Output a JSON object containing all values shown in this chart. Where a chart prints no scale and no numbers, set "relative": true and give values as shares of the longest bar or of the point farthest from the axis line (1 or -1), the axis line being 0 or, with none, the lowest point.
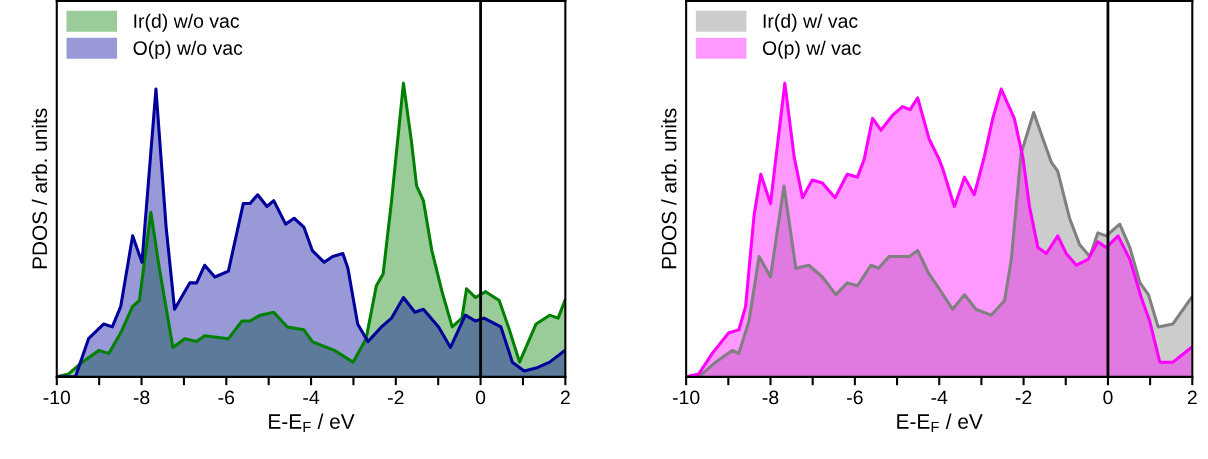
{
  "chart_data": [
    {
      "type": "area",
      "relative": true,
      "xlabel": "E-E$_{F}$ / eV",
      "ylabel": "PDOS / arb. units",
      "xlim": [
        -10,
        2
      ],
      "xticks": [
        -10,
        {
          "value": -9,
          "label": null
        },
        -8,
        {
          "value": -7,
          "label": null
        },
        -6,
        {
          "value": -5,
          "label": null
        },
        -4,
        {
          "value": -3,
          "label": null
        },
        -2,
        {
          "value": -1,
          "label": null
        },
        0,
        {
          "value": 1,
          "label": null
        },
        2
      ],
      "legend": "top left",
      "grid": false,
      "ref_lines": [
        {
          "axis": "x",
          "value": 0,
          "color": "#000000",
          "line_style": "solid"
        }
      ],
      "series": [
        {
          "name": "Ir(d) w/o vac",
          "color": "#008000",
          "x": [
            -10,
            -9.72,
            -9.4,
            -9.01,
            -8.77,
            -8.49,
            -8.21,
            -8.05,
            -7.78,
            -7.58,
            -7.26,
            -6.98,
            -6.7,
            -6.51,
            -5.95,
            -5.63,
            -5.44,
            -5.2,
            -4.88,
            -4.56,
            -4.17,
            -3.97,
            -3.45,
            -3.01,
            -2.7,
            -2.46,
            -2.3,
            -2.1,
            -1.82,
            -1.63,
            -1.51,
            -1.35,
            -1.15,
            -0.91,
            -0.67,
            -0.44,
            -0.33,
            -0.12,
            0.12,
            0.44,
            0.68,
            0.92,
            1.31,
            1.63,
            1.83,
            1.99
          ],
          "values": [
            0,
            0.01,
            0.05,
            0.09,
            0.08,
            0.15,
            0.24,
            0.26,
            0.56,
            0.37,
            0.1,
            0.13,
            0.12,
            0.14,
            0.13,
            0.19,
            0.19,
            0.21,
            0.22,
            0.17,
            0.16,
            0.12,
            0.09,
            0.05,
            0.13,
            0.31,
            0.35,
            0.6,
            1.0,
            0.8,
            0.65,
            0.6,
            0.43,
            0.29,
            0.17,
            0.2,
            0.3,
            0.27,
            0.29,
            0.26,
            0.16,
            0.05,
            0.18,
            0.21,
            0.2,
            0.26
          ]
        },
        {
          "name": "O(p) w/o vac",
          "color": "#00009b",
          "x": [
            -10,
            -9.56,
            -9.25,
            -8.89,
            -8.69,
            -8.49,
            -8.21,
            -7.99,
            -7.66,
            -7.42,
            -7.22,
            -6.86,
            -6.7,
            -6.51,
            -6.27,
            -5.95,
            -5.6,
            -5.44,
            -5.26,
            -5.04,
            -4.88,
            -4.6,
            -4.4,
            -4.17,
            -3.97,
            -3.69,
            -3.49,
            -3.25,
            -3.13,
            -2.9,
            -2.66,
            -2.34,
            -2.1,
            -1.82,
            -1.55,
            -1.35,
            -0.99,
            -0.71,
            -0.36,
            -0.12,
            0.08,
            0.48,
            0.75,
            1.03,
            1.31,
            1.63,
            1.99
          ],
          "values": [
            0,
            0,
            0.13,
            0.18,
            0.17,
            0.24,
            0.48,
            0.39,
            0.98,
            0.51,
            0.23,
            0.32,
            0.32,
            0.38,
            0.34,
            0.36,
            0.59,
            0.59,
            0.62,
            0.58,
            0.6,
            0.52,
            0.54,
            0.51,
            0.43,
            0.39,
            0.41,
            0.42,
            0.37,
            0.18,
            0.12,
            0.17,
            0.2,
            0.27,
            0.22,
            0.23,
            0.17,
            0.1,
            0.21,
            0.19,
            0.2,
            0.17,
            0.05,
            0.02,
            0.03,
            0.05,
            0.09
          ]
        }
      ]
    },
    {
      "type": "area",
      "relative": true,
      "xlabel": "E-E$_{F}$ / eV",
      "ylabel": "PDOS / arb. units",
      "xlim": [
        -10,
        2
      ],
      "xticks": [
        -10,
        {
          "value": -9,
          "label": null
        },
        -8,
        {
          "value": -7,
          "label": null
        },
        -6,
        {
          "value": -5,
          "label": null
        },
        -4,
        {
          "value": -3,
          "label": null
        },
        -2,
        {
          "value": -1,
          "label": null
        },
        0,
        {
          "value": 1,
          "label": null
        },
        2
      ],
      "legend": "top left",
      "grid": false,
      "ref_lines": [
        {
          "axis": "x",
          "value": 0,
          "color": "#000000",
          "line_style": "solid"
        }
      ],
      "series": [
        {
          "name": "Ir(d) w/ vac",
          "color": "#808080",
          "x": [
            -10,
            -9.62,
            -9.3,
            -8.91,
            -8.75,
            -8.51,
            -8.27,
            -8,
            -7.68,
            -7.4,
            -7.09,
            -6.77,
            -6.45,
            -6.18,
            -5.94,
            -5.62,
            -5.44,
            -5.19,
            -4.71,
            -4.51,
            -4.24,
            -4,
            -3.68,
            -3.4,
            -3.13,
            -2.77,
            -2.45,
            -2.29,
            -2.06,
            -1.76,
            -1.54,
            -1.34,
            -1.19,
            -0.91,
            -0.67,
            -0.43,
            -0.24,
            -0.04,
            0.28,
            0.52,
            0.76,
            0.96,
            1.19,
            1.54,
            1.98
          ],
          "values": [
            0,
            0.01,
            0.05,
            0.09,
            0.08,
            0.19,
            0.41,
            0.34,
            0.65,
            0.37,
            0.38,
            0.34,
            0.28,
            0.32,
            0.31,
            0.38,
            0.37,
            0.41,
            0.41,
            0.43,
            0.35,
            0.3,
            0.23,
            0.28,
            0.23,
            0.21,
            0.26,
            0.4,
            0.76,
            0.9,
            0.81,
            0.73,
            0.7,
            0.54,
            0.45,
            0.41,
            0.49,
            0.48,
            0.52,
            0.44,
            0.32,
            0.28,
            0.17,
            0.18,
            0.27
          ]
        },
        {
          "name": "O(p) w/ vac",
          "color": "#ff00ff",
          "x": [
            -10,
            -9.7,
            -9.38,
            -8.99,
            -8.75,
            -8.59,
            -8.39,
            -8.23,
            -8,
            -7.66,
            -7.44,
            -7.24,
            -7.01,
            -6.77,
            -6.47,
            -6.18,
            -5.94,
            -5.78,
            -5.58,
            -5.38,
            -5.11,
            -4.87,
            -4.69,
            -4.51,
            -4.24,
            -4,
            -3.92,
            -3.64,
            -3.4,
            -3.17,
            -2.93,
            -2.73,
            -2.53,
            -2.22,
            -2.02,
            -1.86,
            -1.66,
            -1.46,
            -1.19,
            -0.99,
            -0.75,
            -0.47,
            -0.24,
            -0.04,
            0.24,
            0.52,
            0.79,
            0.99,
            1.23,
            1.54,
            1.98
          ],
          "values": [
            0,
            0.01,
            0.08,
            0.15,
            0.16,
            0.24,
            0.55,
            0.69,
            0.59,
            1.0,
            0.75,
            0.61,
            0.67,
            0.66,
            0.61,
            0.69,
            0.68,
            0.74,
            0.88,
            0.84,
            0.89,
            0.92,
            0.91,
            0.95,
            0.81,
            0.74,
            0.71,
            0.58,
            0.68,
            0.62,
            0.75,
            0.88,
            0.98,
            0.88,
            0.75,
            0.58,
            0.44,
            0.42,
            0.48,
            0.42,
            0.38,
            0.4,
            0.46,
            0.44,
            0.48,
            0.4,
            0.27,
            0.19,
            0.05,
            0.05,
            0.1
          ]
        }
      ]
    }
  ]
}
